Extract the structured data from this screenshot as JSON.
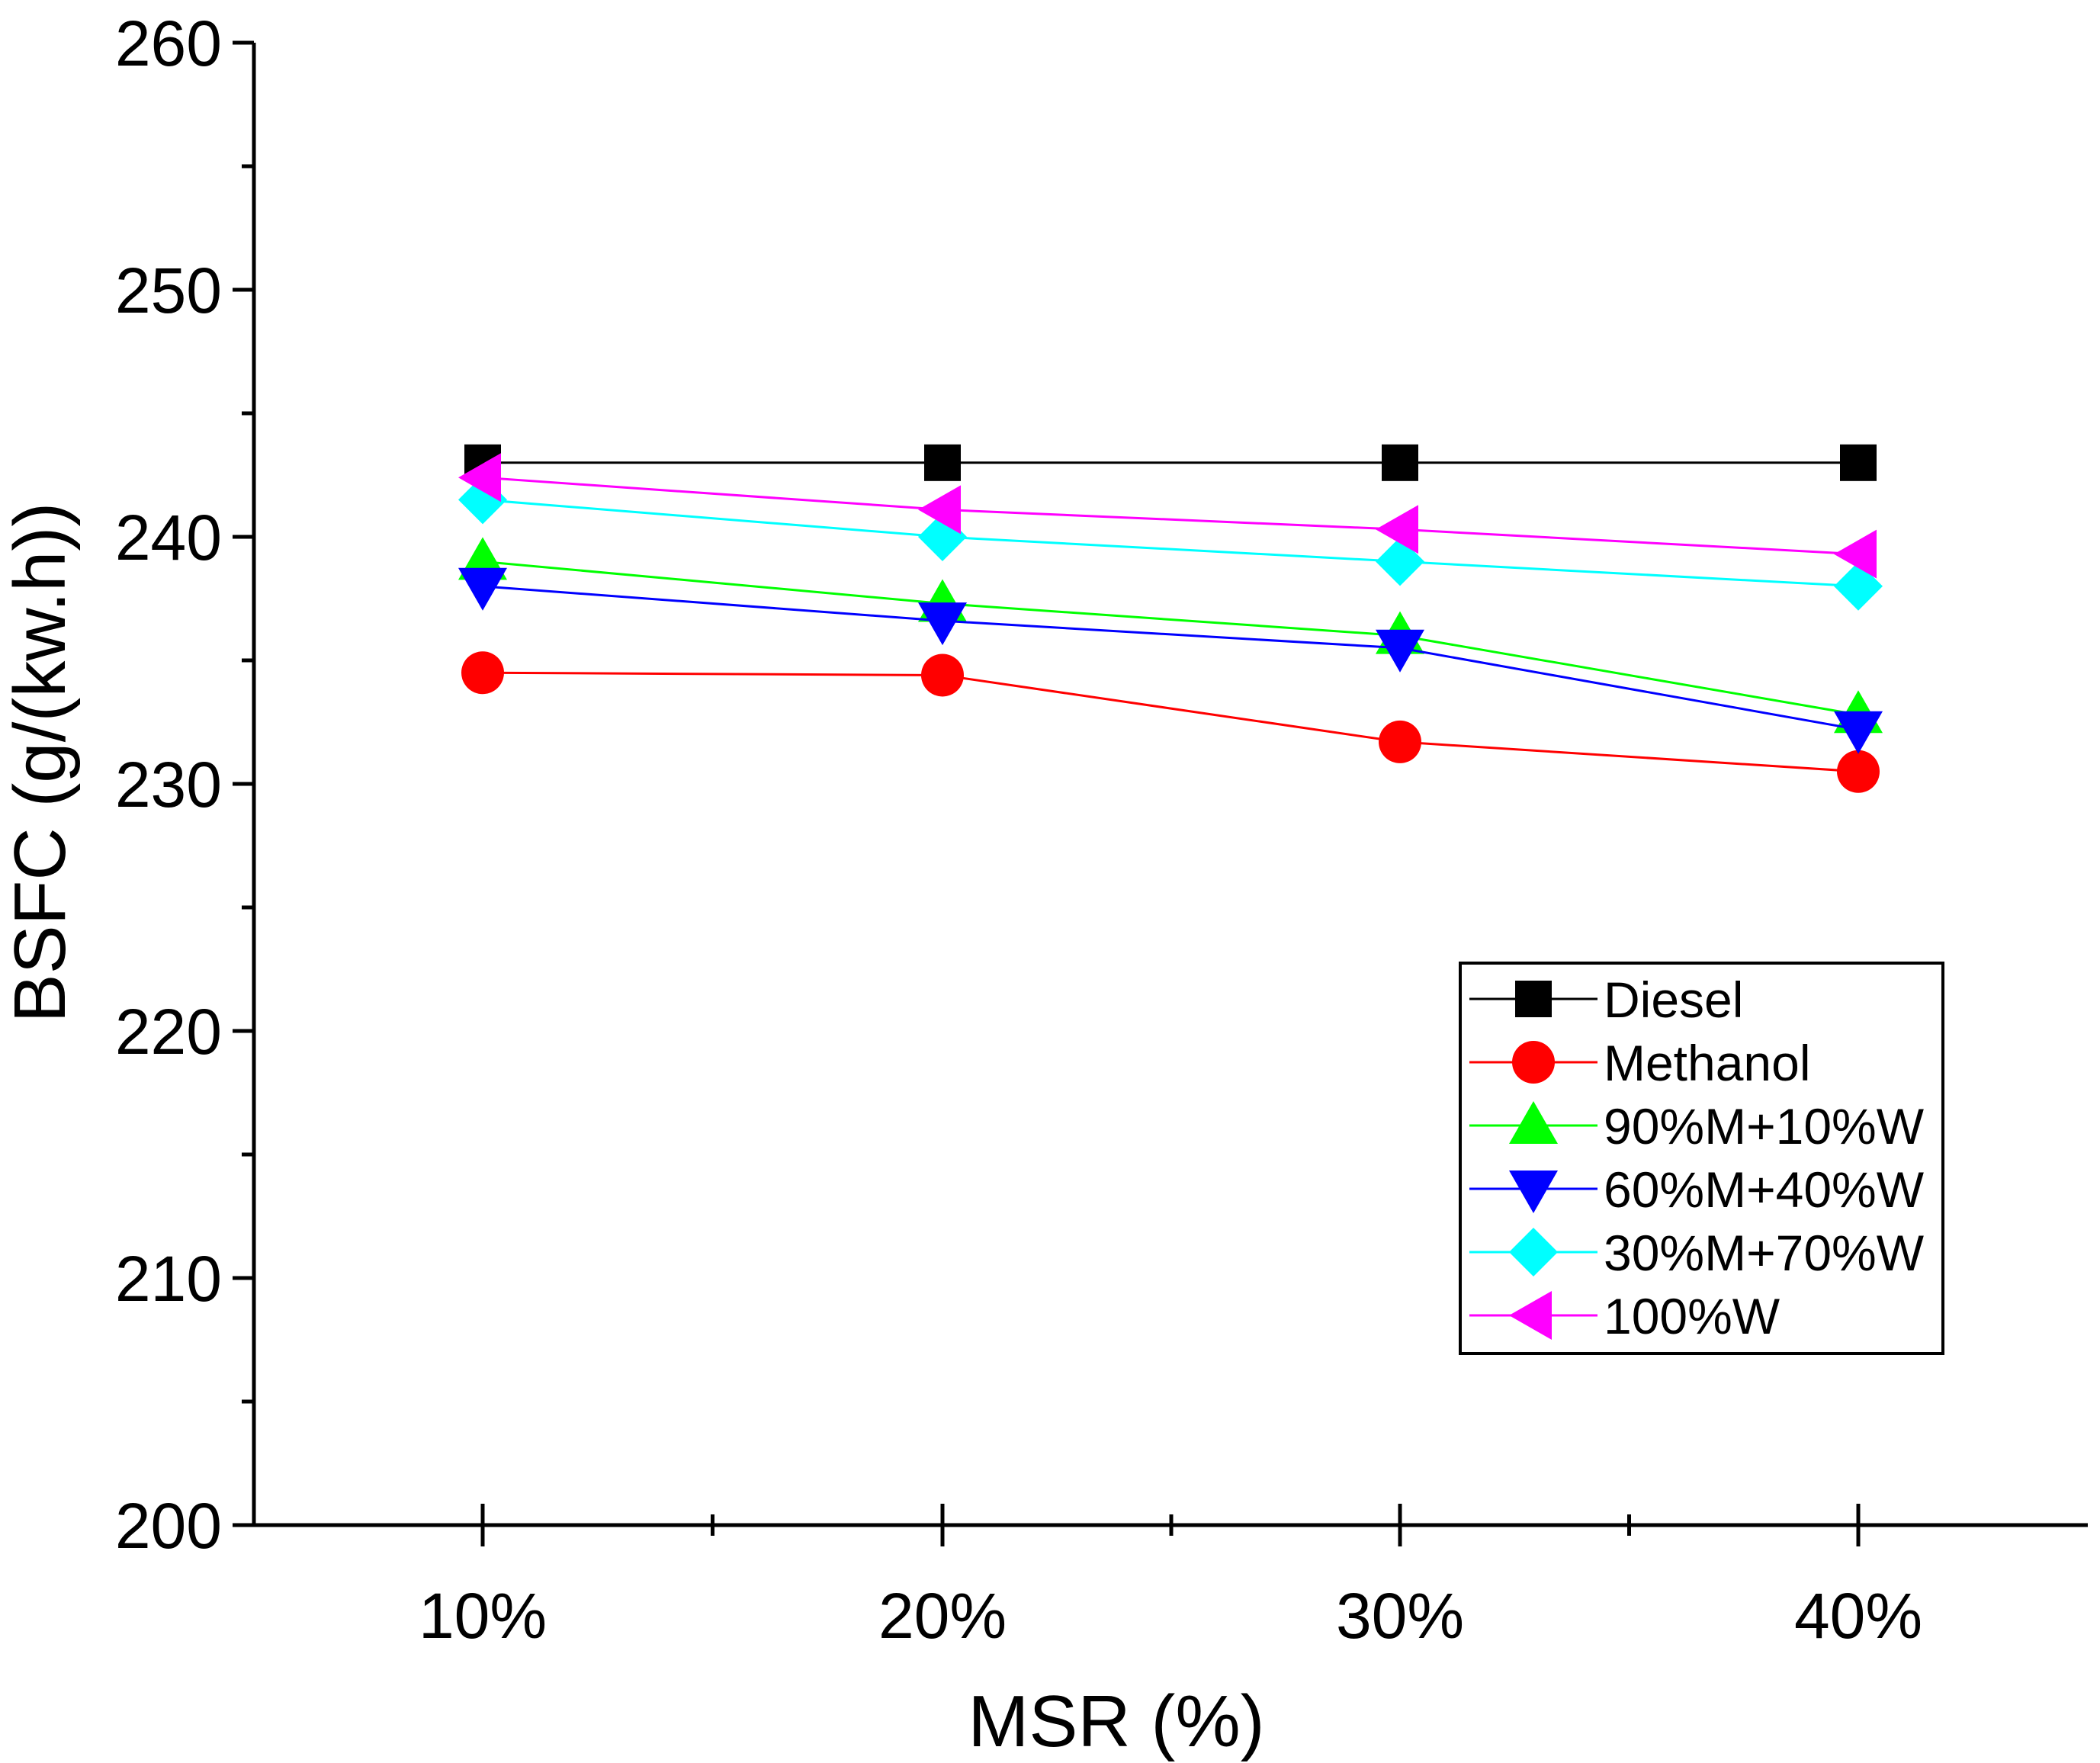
{
  "chart_data": {
    "type": "line",
    "title": "",
    "xlabel": "MSR (%)",
    "ylabel": "BSFC (g/(kw.h))",
    "categories": [
      "10%",
      "20%",
      "30%",
      "40%"
    ],
    "ylim": [
      200,
      260
    ],
    "yticks": [
      200,
      210,
      220,
      230,
      240,
      250,
      260
    ],
    "grid": false,
    "legend_position": "bottom-right",
    "series": [
      {
        "name": "Diesel",
        "values": [
          243.0,
          243.0,
          243.0,
          243.0
        ],
        "color": "#000000",
        "marker": "square"
      },
      {
        "name": "Methanol",
        "values": [
          234.5,
          234.4,
          231.7,
          230.5
        ],
        "color": "#ff0000",
        "marker": "circle"
      },
      {
        "name": "90%M+10%W",
        "values": [
          239.0,
          237.3,
          236.0,
          232.8
        ],
        "color": "#00ff00",
        "marker": "triangle-up"
      },
      {
        "name": "60%M+40%W",
        "values": [
          238.0,
          236.6,
          235.5,
          232.2
        ],
        "color": "#0000ff",
        "marker": "triangle-down"
      },
      {
        "name": "30%M+70%W",
        "values": [
          241.5,
          240.0,
          239.0,
          238.0
        ],
        "color": "#00ffff",
        "marker": "diamond"
      },
      {
        "name": "100%W",
        "values": [
          242.4,
          241.1,
          240.3,
          239.3
        ],
        "color": "#ff00ff",
        "marker": "triangle-left"
      }
    ]
  }
}
